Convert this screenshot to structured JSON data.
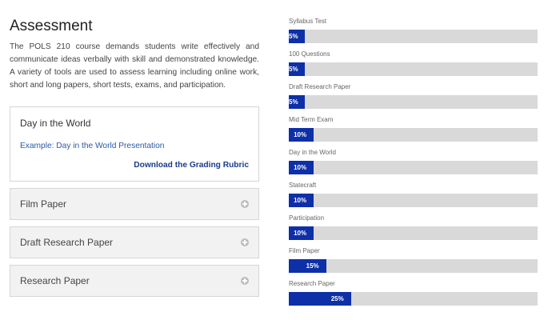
{
  "assessment": {
    "title": "Assessment",
    "intro": "The POLS 210 course demands students write effectively and communicate ideas verbally with skill and demonstrated knowledge. A variety of tools are used to assess learning including online work, short and long papers, short tests, exams, and participation."
  },
  "open_card": {
    "title": "Day in the World",
    "link": "Example: Day in the World Presentation",
    "rubric": "Download the Grading Rubric"
  },
  "accordions": [
    {
      "label": "Film Paper",
      "icon": "plus-circle-icon"
    },
    {
      "label": "Draft Research Paper",
      "icon": "plus-circle-icon"
    },
    {
      "label": "Research Paper",
      "icon": "plus-circle-icon"
    }
  ],
  "colors": {
    "bar_fill": "#0d2fa8",
    "bar_track": "#d9d9d9",
    "link": "#2a5aa8"
  },
  "weights": [
    {
      "label": "Syllabus Test",
      "value": 5,
      "text": "5%"
    },
    {
      "label": "100 Questions",
      "value": 5,
      "text": "5%"
    },
    {
      "label": "Draft Research Paper",
      "value": 5,
      "text": "5%"
    },
    {
      "label": "Mid Term Exam",
      "value": 10,
      "text": "10%"
    },
    {
      "label": "Day in the World",
      "value": 10,
      "text": "10%"
    },
    {
      "label": "Statecraft",
      "value": 10,
      "text": "10%"
    },
    {
      "label": "Participation",
      "value": 10,
      "text": "10%"
    },
    {
      "label": "Film Paper",
      "value": 15,
      "text": "15%"
    },
    {
      "label": "Research Paper",
      "value": 25,
      "text": "25%"
    }
  ]
}
